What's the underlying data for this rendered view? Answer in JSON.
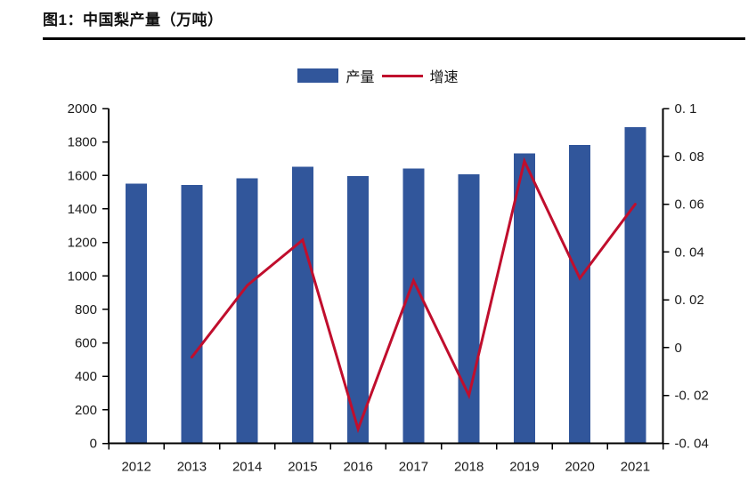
{
  "figure": {
    "title": "图1：中国梨产量（万吨）"
  },
  "legend": {
    "production": "产量",
    "growth": "增速"
  },
  "colors": {
    "bar": "#31569B",
    "line": "#C00E2D",
    "axis": "#000000",
    "text": "#1A1A1A"
  },
  "chart_data": {
    "type": "bar+line combo",
    "title": "图1：中国梨产量（万吨）",
    "unit": "万吨",
    "categories": [
      "2012",
      "2013",
      "2014",
      "2015",
      "2016",
      "2017",
      "2018",
      "2019",
      "2020",
      "2021"
    ],
    "series": [
      {
        "name": "产量",
        "type": "bar",
        "axis": "left",
        "values": [
          1551,
          1544,
          1584,
          1653,
          1596,
          1641,
          1608,
          1731,
          1782,
          1888
        ]
      },
      {
        "name": "增速",
        "type": "line",
        "axis": "right",
        "values": [
          null,
          -0.004,
          0.026,
          0.045,
          -0.034,
          0.028,
          -0.02,
          0.078,
          0.029,
          0.06
        ]
      }
    ],
    "left_axis": {
      "min": 0,
      "max": 2000,
      "step": 200,
      "tick_labels": [
        "0",
        "200",
        "400",
        "600",
        "800",
        "1000",
        "1200",
        "1400",
        "1600",
        "1800",
        "2000"
      ]
    },
    "right_axis": {
      "min": -0.04,
      "max": 0.1,
      "step": 0.02,
      "tick_labels": [
        "-0. 04",
        "-0. 02",
        "0",
        "0. 02",
        "0. 04",
        "0. 06",
        "0. 08",
        "0. 1"
      ]
    },
    "grid": false,
    "legend_position": "top-center"
  }
}
